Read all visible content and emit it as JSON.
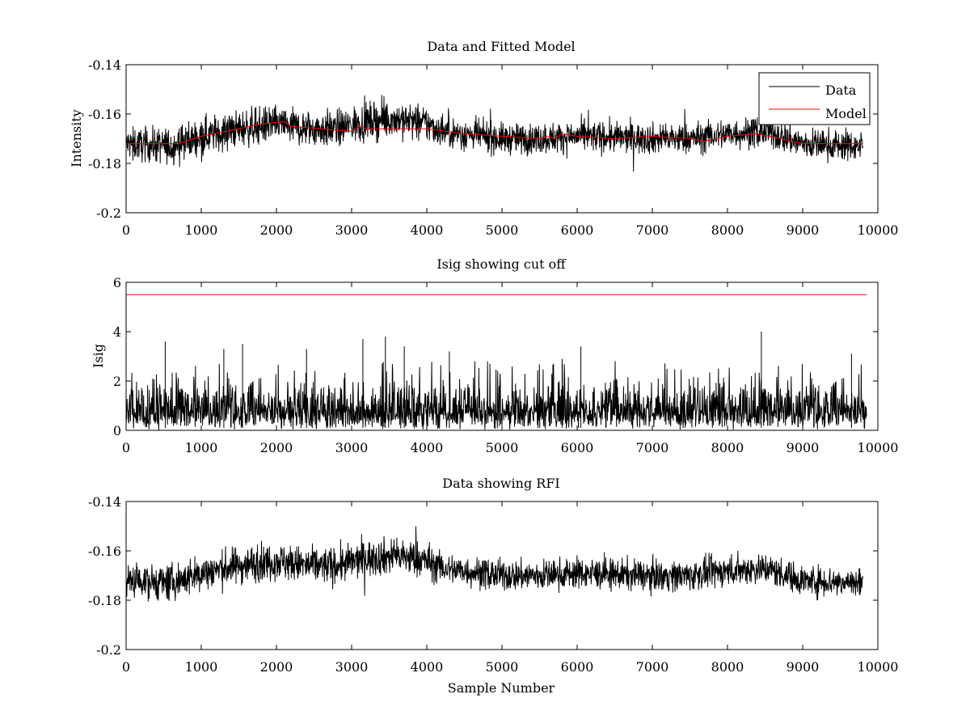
{
  "chart_data": [
    {
      "type": "line",
      "title": "Data and Fitted Model",
      "xlabel": "",
      "ylabel": "Intensity",
      "xlim": [
        0,
        10000
      ],
      "ylim": [
        -0.2,
        -0.14
      ],
      "xticks": [
        0,
        1000,
        2000,
        3000,
        4000,
        5000,
        6000,
        7000,
        8000,
        9000,
        10000
      ],
      "xtick_labels": [
        "0",
        "1000",
        "2000",
        "3000",
        "4000",
        "5000",
        "6000",
        "7000",
        "8000",
        "9000",
        "10000"
      ],
      "yticks": [
        -0.2,
        -0.18,
        -0.16,
        -0.14
      ],
      "ytick_labels": [
        "-0.2",
        "-0.18",
        "-0.16",
        "-0.14"
      ],
      "legend": {
        "position": "top-right",
        "entries": [
          "Data",
          "Model"
        ]
      },
      "grid": false,
      "series": [
        {
          "name": "Data",
          "color": "#000000",
          "kind": "noisy",
          "x": [
            0,
            600,
            1000,
            1500,
            2000,
            2400,
            2800,
            3200,
            3600,
            4000,
            4200,
            5000,
            5500,
            6000,
            7000,
            7500,
            8000,
            8500,
            9000,
            9800
          ],
          "center": [
            -0.172,
            -0.173,
            -0.169,
            -0.166,
            -0.164,
            -0.166,
            -0.166,
            -0.163,
            -0.162,
            -0.164,
            -0.167,
            -0.17,
            -0.17,
            -0.169,
            -0.17,
            -0.17,
            -0.168,
            -0.167,
            -0.172,
            -0.173
          ],
          "amplitude": [
            0.005,
            0.006,
            0.006,
            0.006,
            0.006,
            0.006,
            0.006,
            0.006,
            0.006,
            0.006,
            0.005,
            0.005,
            0.005,
            0.005,
            0.005,
            0.005,
            0.005,
            0.005,
            0.005,
            0.005
          ]
        },
        {
          "name": "Model",
          "color": "#ff0000",
          "kind": "line",
          "x": [
            0,
            700,
            1000,
            1500,
            1800,
            2100,
            2200,
            2600,
            3000,
            3100,
            3200,
            3600,
            4000,
            4500,
            5000,
            5500,
            5600,
            5700,
            5800,
            6000,
            6500,
            7000,
            7500,
            7700,
            8000,
            8400,
            8700,
            9000,
            9800
          ],
          "y": [
            -0.172,
            -0.172,
            -0.169,
            -0.166,
            -0.164,
            -0.163,
            -0.165,
            -0.166,
            -0.167,
            -0.165,
            -0.166,
            -0.166,
            -0.166,
            -0.168,
            -0.169,
            -0.17,
            -0.169,
            -0.17,
            -0.168,
            -0.169,
            -0.17,
            -0.169,
            -0.17,
            -0.171,
            -0.169,
            -0.168,
            -0.17,
            -0.172,
            -0.172
          ]
        }
      ]
    },
    {
      "type": "line",
      "title": "Isig showing cut off",
      "xlabel": "",
      "ylabel": "Isig",
      "xlim": [
        0,
        10000
      ],
      "ylim": [
        0,
        6
      ],
      "xticks": [
        0,
        1000,
        2000,
        3000,
        4000,
        5000,
        6000,
        7000,
        8000,
        9000,
        10000
      ],
      "xtick_labels": [
        "0",
        "1000",
        "2000",
        "3000",
        "4000",
        "5000",
        "6000",
        "7000",
        "8000",
        "9000",
        "10000"
      ],
      "yticks": [
        0,
        2,
        4,
        6
      ],
      "ytick_labels": [
        "0",
        "2",
        "4",
        "6"
      ],
      "grid": false,
      "series": [
        {
          "color": "#000000",
          "kind": "spikes",
          "x_range": [
            0,
            9850
          ],
          "typical_max": 2.0,
          "peaks": [
            [
              520,
              3.6
            ],
            [
              1300,
              3.3
            ],
            [
              1550,
              3.5
            ],
            [
              2400,
              3.3
            ],
            [
              3150,
              3.7
            ],
            [
              3450,
              3.8
            ],
            [
              3700,
              3.4
            ],
            [
              4300,
              3.2
            ],
            [
              5800,
              2.9
            ],
            [
              6050,
              3.4
            ],
            [
              8450,
              4.0
            ],
            [
              9650,
              3.1
            ]
          ]
        },
        {
          "color": "#ff0000",
          "kind": "line",
          "x": [
            0,
            9850
          ],
          "y": [
            5.5,
            5.5
          ]
        }
      ]
    },
    {
      "type": "line",
      "title": "Data showing RFI",
      "xlabel": "Sample Number",
      "ylabel": "",
      "xlim": [
        0,
        10000
      ],
      "ylim": [
        -0.2,
        -0.14
      ],
      "xticks": [
        0,
        1000,
        2000,
        3000,
        4000,
        5000,
        6000,
        7000,
        8000,
        9000,
        10000
      ],
      "xtick_labels": [
        "0",
        "1000",
        "2000",
        "3000",
        "4000",
        "5000",
        "6000",
        "7000",
        "8000",
        "9000",
        "10000"
      ],
      "yticks": [
        -0.2,
        -0.18,
        -0.16,
        -0.14
      ],
      "ytick_labels": [
        "-0.2",
        "-0.18",
        "-0.16",
        "-0.14"
      ],
      "grid": false,
      "series": [
        {
          "color": "#000000",
          "kind": "noisy",
          "x": [
            0,
            600,
            1000,
            1500,
            2000,
            2400,
            2800,
            3200,
            3600,
            4000,
            4200,
            5000,
            5500,
            6000,
            7000,
            7500,
            8000,
            8500,
            9000,
            9800
          ],
          "center": [
            -0.172,
            -0.173,
            -0.169,
            -0.166,
            -0.164,
            -0.166,
            -0.166,
            -0.163,
            -0.162,
            -0.164,
            -0.167,
            -0.17,
            -0.17,
            -0.169,
            -0.17,
            -0.17,
            -0.168,
            -0.167,
            -0.172,
            -0.173
          ],
          "amplitude": [
            0.005,
            0.006,
            0.006,
            0.006,
            0.006,
            0.006,
            0.006,
            0.006,
            0.006,
            0.006,
            0.005,
            0.005,
            0.005,
            0.005,
            0.005,
            0.005,
            0.005,
            0.005,
            0.005,
            0.005
          ]
        }
      ]
    }
  ]
}
